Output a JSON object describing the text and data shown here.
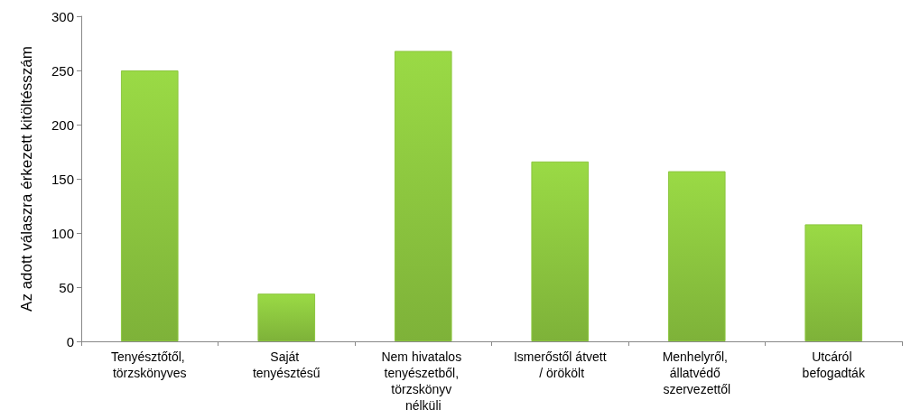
{
  "chart_data": {
    "type": "bar",
    "ylabel": "Az adott válaszra érkezett kitöltésszám",
    "categories": [
      "Tenyésztőtől, törzskönyves",
      "Saját tenyésztésű",
      "Nem hivatalos tenyészetből, törzskönyv nélküli",
      "Ismerőstől átvett / örökölt",
      "Menhelyről, állatvédő szervezettől",
      "Utcáról befogadták"
    ],
    "values": [
      250,
      44,
      268,
      166,
      157,
      108
    ],
    "color": "#8cc63f",
    "ylim": [
      0,
      300
    ],
    "yticks": [
      0,
      50,
      100,
      150,
      200,
      250,
      300
    ],
    "grid": false
  }
}
